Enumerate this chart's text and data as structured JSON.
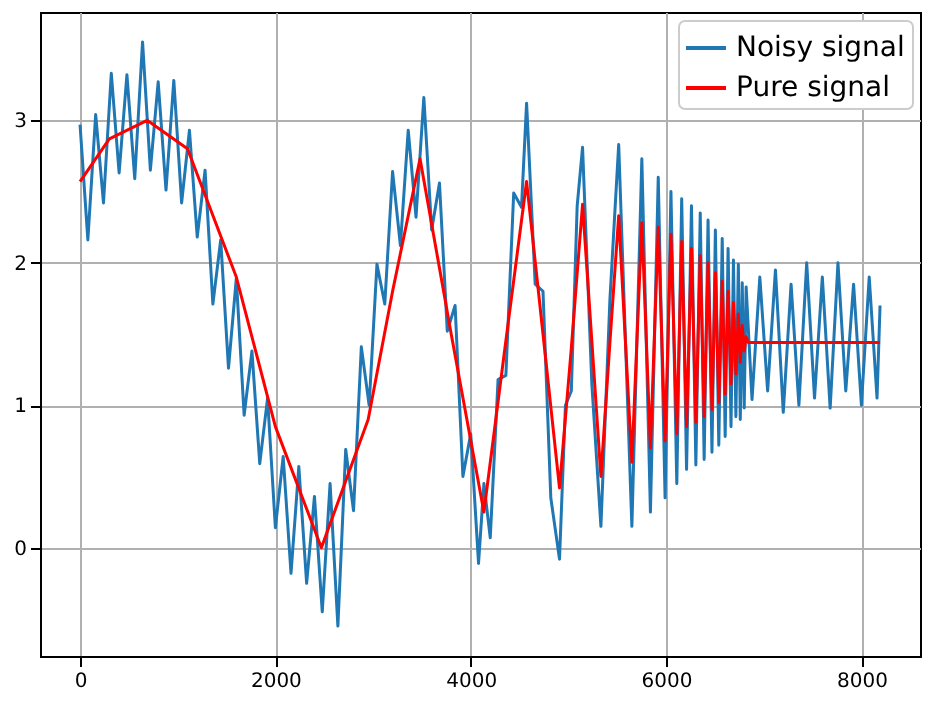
{
  "chart_data": {
    "type": "line",
    "xlim": [
      -410,
      8600
    ],
    "ylim": [
      -0.76,
      3.76
    ],
    "xticks": [
      0,
      2000,
      4000,
      6000,
      8000
    ],
    "yticks": [
      0,
      1,
      2,
      3
    ],
    "grid": true,
    "legend": "top right",
    "line_style": "solid",
    "marker": "none",
    "series": [
      {
        "name": "Noisy signal",
        "color": "#1f77b4",
        "x": [
          0,
          80,
          160,
          240,
          320,
          400,
          480,
          560,
          640,
          720,
          800,
          880,
          960,
          1040,
          1120,
          1200,
          1280,
          1360,
          1440,
          1520,
          1600,
          1680,
          1760,
          1840,
          1920,
          2000,
          2080,
          2160,
          2240,
          2320,
          2400,
          2480,
          2560,
          2640,
          2720,
          2800,
          2880,
          2960,
          3040,
          3120,
          3200,
          3280,
          3360,
          3440,
          3520,
          3600,
          3680,
          3760,
          3840,
          3920,
          4000,
          4080,
          4135,
          4200,
          4280,
          4360,
          4440,
          4520,
          4572,
          4660,
          4740,
          4820,
          4909,
          4970,
          5030,
          5090,
          5145,
          5240,
          5333,
          5425,
          5515,
          5650,
          5752,
          5840,
          5920,
          5990,
          6050,
          6110,
          6160,
          6210,
          6260,
          6305,
          6350,
          6390,
          6430,
          6470,
          6505,
          6540,
          6575,
          6605,
          6635,
          6665,
          6690,
          6715,
          6740,
          6760,
          6780,
          6800,
          6820,
          6880,
          6960,
          7040,
          7120,
          7200,
          7280,
          7360,
          7440,
          7520,
          7600,
          7680,
          7760,
          7840,
          7920,
          8000,
          8080,
          8160,
          8191
        ],
        "values": [
          2.97,
          2.16,
          3.04,
          2.42,
          3.33,
          2.63,
          3.32,
          2.59,
          3.55,
          2.65,
          3.27,
          2.51,
          3.28,
          2.42,
          2.93,
          2.18,
          2.65,
          1.71,
          2.16,
          1.26,
          1.89,
          0.93,
          1.38,
          0.59,
          1.05,
          0.14,
          0.64,
          -0.18,
          0.57,
          -0.25,
          0.36,
          -0.45,
          0.45,
          -0.55,
          0.69,
          0.26,
          1.41,
          1.0,
          1.99,
          1.71,
          2.64,
          2.12,
          2.93,
          2.32,
          3.16,
          2.23,
          2.56,
          1.52,
          1.7,
          0.5,
          0.8,
          -0.11,
          0.45,
          0.07,
          1.18,
          1.21,
          2.49,
          2.39,
          3.12,
          1.85,
          1.8,
          0.35,
          -0.08,
          1.0,
          1.1,
          2.4,
          2.81,
          1.15,
          0.15,
          1.74,
          2.83,
          0.15,
          2.73,
          0.25,
          2.6,
          0.35,
          2.5,
          0.45,
          2.45,
          0.55,
          2.4,
          0.58,
          2.35,
          0.62,
          2.3,
          0.67,
          2.23,
          0.72,
          2.17,
          0.78,
          2.1,
          0.85,
          2.02,
          0.92,
          1.99,
          0.9,
          1.86,
          0.98,
          1.83,
          1.04,
          1.9,
          1.1,
          1.95,
          0.95,
          1.85,
          1.0,
          2.0,
          1.05,
          1.9,
          0.98,
          2.0,
          1.1,
          1.85,
          1.0,
          1.9,
          1.05,
          1.7
        ]
      },
      {
        "name": "Pure signal",
        "color": "#ff0000",
        "x": [
          0,
          300,
          687,
          1100,
          1600,
          2000,
          2471,
          2950,
          3200,
          3481,
          3800,
          4135,
          4350,
          4572,
          4740,
          4909,
          5030,
          5145,
          5240,
          5333,
          5425,
          5515,
          5650,
          5752,
          5840,
          5920,
          5990,
          6050,
          6110,
          6160,
          6210,
          6260,
          6305,
          6350,
          6390,
          6430,
          6470,
          6505,
          6540,
          6575,
          6605,
          6635,
          6665,
          6690,
          6715,
          6740,
          6760,
          6780,
          6800,
          6820,
          6842,
          8191
        ],
        "values": [
          2.57,
          2.87,
          3.0,
          2.8,
          1.9,
          0.85,
          0.0,
          0.9,
          1.8,
          2.73,
          1.5,
          0.25,
          1.4,
          2.57,
          1.5,
          0.42,
          1.4,
          2.41,
          1.45,
          0.5,
          1.44,
          2.33,
          0.6,
          2.28,
          0.7,
          2.25,
          0.75,
          2.2,
          0.8,
          2.15,
          0.85,
          2.1,
          0.88,
          2.05,
          0.92,
          2.0,
          0.97,
          1.93,
          1.02,
          1.87,
          1.08,
          1.8,
          1.15,
          1.72,
          1.22,
          1.64,
          1.3,
          1.56,
          1.38,
          1.48,
          1.44,
          1.44
        ]
      }
    ]
  }
}
